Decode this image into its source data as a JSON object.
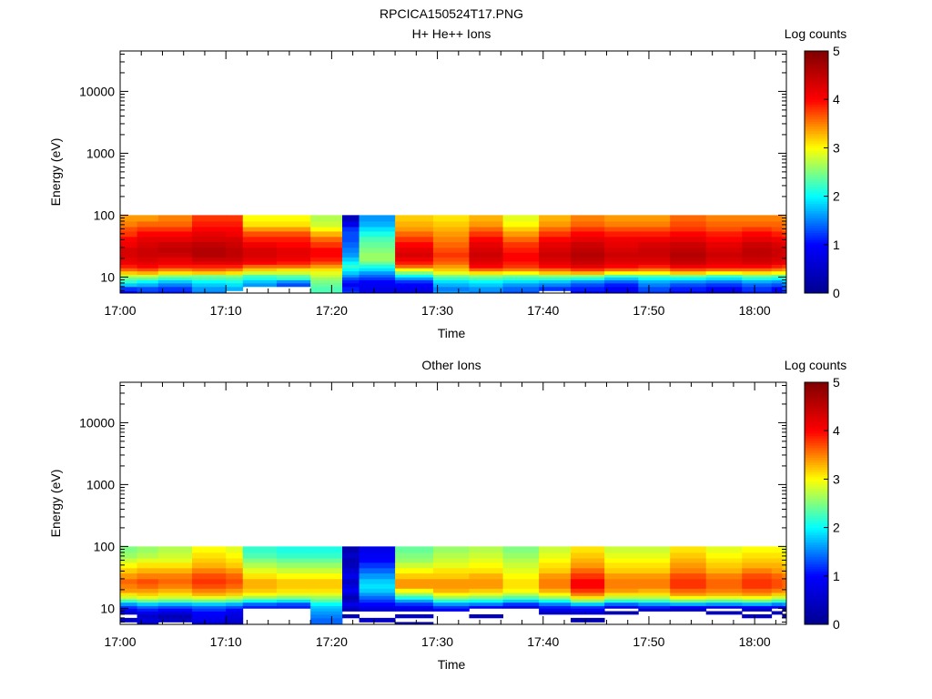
{
  "figure": {
    "title": "RPCICA150524T17.PNG"
  },
  "colormap": [
    "#00008f",
    "#0000ff",
    "#00ffff",
    "#ffff00",
    "#ff0000",
    "#800000"
  ],
  "chart_data": [
    {
      "type": "heatmap",
      "title": "H+ He++ Ions",
      "xlabel": "Time",
      "ylabel": "Energy (eV)",
      "ylog": true,
      "xlim_min": [
        0,
        63
      ],
      "ylim": [
        5.5,
        45000
      ],
      "x_ticks_min": [
        0,
        10,
        20,
        30,
        40,
        50,
        60
      ],
      "x_tick_labels": [
        "17:00",
        "17:10",
        "17:20",
        "17:30",
        "17:40",
        "17:50",
        "18:00"
      ],
      "y_ticks": [
        10,
        100,
        1000,
        10000
      ],
      "y_tick_labels": [
        "10",
        "100",
        "1000",
        "10000"
      ],
      "colorbar": {
        "label": "Log counts",
        "range": [
          0,
          5
        ],
        "ticks": [
          0,
          1,
          2,
          3,
          4,
          5
        ],
        "tick_labels": [
          "0",
          "1",
          "2",
          "3",
          "4",
          "5"
        ]
      },
      "data_extent_eV": [
        5.5,
        100
      ],
      "energy_bins_eV": [
        6.0,
        7.0,
        8.0,
        9.0,
        10.0,
        11.0,
        12.5,
        14.0,
        16.0,
        18.0,
        21.0,
        25.0,
        30.0,
        37.0,
        45.0,
        55.0,
        65.0,
        80.0,
        100.0
      ],
      "time_bins_start_min": [
        0,
        1.6,
        3.6,
        6.8,
        10,
        11.6,
        14.8,
        18,
        21,
        22.6,
        26,
        29.6,
        33,
        36.2,
        39.6,
        42.6,
        45.8,
        49,
        52,
        55.4,
        58.8,
        61.6,
        62.6
      ],
      "log_counts": [
        [
          1.0,
          1.2,
          1.8,
          2.2,
          2.4,
          2.8,
          3.2,
          3.6,
          3.9,
          4.1,
          4.2,
          4.3,
          4.3,
          4.1,
          4.0,
          3.8,
          3.7,
          3.5,
          3.4
        ],
        [
          1.2,
          1.3,
          1.7,
          2.0,
          2.4,
          2.8,
          3.3,
          3.7,
          4.0,
          4.2,
          4.3,
          4.4,
          4.4,
          4.3,
          4.2,
          4.0,
          3.8,
          3.6,
          3.4
        ],
        [
          1.1,
          1.2,
          1.5,
          1.8,
          2.2,
          2.6,
          3.1,
          3.5,
          3.9,
          4.1,
          4.2,
          4.4,
          4.5,
          4.4,
          4.2,
          4.0,
          3.8,
          3.6,
          3.5
        ],
        [
          1.5,
          1.6,
          1.8,
          2.0,
          2.3,
          2.5,
          3.2,
          3.6,
          3.9,
          4.2,
          4.4,
          4.6,
          4.6,
          4.5,
          4.3,
          4.2,
          4.0,
          3.9,
          3.8
        ],
        [
          null,
          1.7,
          1.9,
          2.1,
          2.3,
          2.6,
          3.1,
          3.5,
          3.9,
          4.2,
          4.4,
          4.5,
          4.5,
          4.4,
          4.3,
          4.1,
          4.0,
          3.9,
          3.8
        ],
        [
          null,
          null,
          1.6,
          1.8,
          2.1,
          2.3,
          2.8,
          3.2,
          3.6,
          4.0,
          4.2,
          4.3,
          4.3,
          4.1,
          3.9,
          3.7,
          3.4,
          3.1,
          3.0
        ],
        [
          null,
          null,
          1.3,
          1.6,
          2.2,
          2.4,
          2.8,
          3.1,
          3.6,
          3.9,
          4.1,
          4.2,
          4.2,
          4.0,
          3.9,
          3.7,
          3.4,
          3.1,
          3.0
        ],
        [
          2.3,
          2.3,
          2.4,
          2.5,
          2.6,
          2.8,
          2.9,
          3.1,
          3.4,
          3.7,
          3.9,
          4.0,
          4.0,
          3.8,
          3.6,
          3.3,
          3.0,
          2.8,
          2.7
        ],
        [
          1.2,
          1.1,
          0.9,
          1.1,
          1.3,
          1.6,
          1.8,
          2.0,
          2.2,
          2.0,
          1.8,
          1.6,
          1.5,
          1.4,
          1.3,
          1.3,
          1.2,
          0.8,
          0.4
        ],
        [
          0.9,
          0.8,
          0.9,
          1.0,
          1.2,
          1.4,
          1.6,
          1.9,
          2.1,
          2.4,
          2.6,
          2.6,
          2.5,
          2.4,
          2.3,
          2.1,
          1.9,
          1.7,
          1.6
        ],
        [
          0.8,
          0.8,
          1.0,
          1.2,
          1.6,
          2.0,
          2.5,
          3.0,
          3.6,
          3.9,
          4.1,
          4.3,
          4.2,
          4.0,
          3.8,
          3.6,
          3.4,
          3.3,
          3.2
        ],
        [
          1.6,
          1.5,
          1.7,
          1.9,
          2.2,
          2.5,
          2.9,
          3.2,
          3.4,
          3.6,
          3.7,
          3.8,
          3.7,
          3.6,
          3.5,
          3.4,
          3.3,
          3.2,
          3.1
        ],
        [
          1.5,
          1.6,
          1.8,
          2.0,
          2.3,
          2.6,
          3.1,
          3.6,
          4.0,
          4.2,
          4.3,
          4.4,
          4.3,
          4.2,
          4.0,
          3.8,
          3.6,
          3.4,
          3.3
        ],
        [
          1.3,
          1.4,
          1.6,
          1.9,
          2.2,
          2.5,
          3.0,
          3.5,
          3.8,
          3.9,
          4.0,
          4.0,
          3.9,
          3.8,
          3.6,
          3.4,
          3.2,
          3.0,
          2.9
        ],
        [
          null,
          1.2,
          1.5,
          1.8,
          2.2,
          2.6,
          3.2,
          3.6,
          4.0,
          4.2,
          4.3,
          4.4,
          4.3,
          4.2,
          4.0,
          3.8,
          3.6,
          3.4,
          3.3
        ],
        [
          1.0,
          1.1,
          1.3,
          1.6,
          2.1,
          2.6,
          3.3,
          3.8,
          4.2,
          4.4,
          4.5,
          4.6,
          4.5,
          4.4,
          4.2,
          4.0,
          3.8,
          3.6,
          3.5
        ],
        [
          0.8,
          0.9,
          1.1,
          1.4,
          1.8,
          2.3,
          3.0,
          3.6,
          4.0,
          4.2,
          4.3,
          4.4,
          4.3,
          4.2,
          4.1,
          3.9,
          3.7,
          3.5,
          3.4
        ],
        [
          1.2,
          1.3,
          1.5,
          1.7,
          2.0,
          2.4,
          3.0,
          3.5,
          3.9,
          4.2,
          4.3,
          4.4,
          4.4,
          4.3,
          4.1,
          3.9,
          3.7,
          3.5,
          3.4
        ],
        [
          1.0,
          1.1,
          1.3,
          1.6,
          2.0,
          2.5,
          3.2,
          3.7,
          4.1,
          4.4,
          4.5,
          4.6,
          4.5,
          4.4,
          4.2,
          4.0,
          3.8,
          3.7,
          3.6
        ],
        [
          0.7,
          0.9,
          1.2,
          1.5,
          1.9,
          2.3,
          3.0,
          3.6,
          4.0,
          4.2,
          4.3,
          4.4,
          4.3,
          4.2,
          4.0,
          3.9,
          3.7,
          3.6,
          3.5
        ],
        [
          1.1,
          1.2,
          1.4,
          1.7,
          2.1,
          2.5,
          3.1,
          3.6,
          4.0,
          4.3,
          4.4,
          4.5,
          4.5,
          4.4,
          4.2,
          4.0,
          3.8,
          3.6,
          3.5
        ],
        [
          0.9,
          1.0,
          1.3,
          1.6,
          2.0,
          2.4,
          3.0,
          3.5,
          3.9,
          4.2,
          4.3,
          4.4,
          4.4,
          4.3,
          4.1,
          3.9,
          3.7,
          3.6,
          3.5
        ],
        [
          1.2,
          1.3,
          1.5,
          1.8,
          2.1,
          2.4,
          3.0,
          3.4,
          3.8,
          4.1,
          4.2,
          4.3,
          4.3,
          4.2,
          4.0,
          3.8,
          3.6,
          3.5,
          3.4
        ]
      ]
    },
    {
      "type": "heatmap",
      "title": "Other Ions",
      "xlabel": "Time",
      "ylabel": "Energy (eV)",
      "ylog": true,
      "xlim_min": [
        0,
        63
      ],
      "ylim": [
        5.5,
        45000
      ],
      "x_ticks_min": [
        0,
        10,
        20,
        30,
        40,
        50,
        60
      ],
      "x_tick_labels": [
        "17:00",
        "17:10",
        "17:20",
        "17:30",
        "17:40",
        "17:50",
        "18:00"
      ],
      "y_ticks": [
        10,
        100,
        1000,
        10000
      ],
      "y_tick_labels": [
        "10",
        "100",
        "1000",
        "10000"
      ],
      "colorbar": {
        "label": "Log counts",
        "range": [
          0,
          5
        ],
        "ticks": [
          0,
          1,
          2,
          3,
          4,
          5
        ],
        "tick_labels": [
          "0",
          "1",
          "2",
          "3",
          "4",
          "5"
        ]
      },
      "data_extent_eV": [
        5.5,
        100
      ],
      "energy_bins_eV": [
        6.0,
        7.0,
        8.0,
        9.0,
        10.0,
        11.0,
        12.5,
        14.0,
        16.0,
        18.0,
        21.0,
        25.0,
        30.0,
        37.0,
        45.0,
        55.0,
        65.0,
        80.0,
        100.0
      ],
      "time_bins_start_min": [
        0,
        1.6,
        3.6,
        6.8,
        10,
        11.6,
        14.8,
        18,
        21,
        22.6,
        26,
        29.6,
        33,
        36.2,
        39.6,
        42.6,
        45.8,
        49,
        52,
        55.4,
        58.8,
        61.6,
        62.6
      ],
      "log_counts": [
        [
          null,
          0.5,
          null,
          0.6,
          0.9,
          1.2,
          1.6,
          2.2,
          2.8,
          3.1,
          3.4,
          3.5,
          3.6,
          3.4,
          3.2,
          3.0,
          2.8,
          2.6,
          2.5
        ],
        [
          0.4,
          0.7,
          0.5,
          0.8,
          1.1,
          1.4,
          1.8,
          2.4,
          2.9,
          3.2,
          3.4,
          3.6,
          3.7,
          3.5,
          3.3,
          3.1,
          2.9,
          2.7,
          2.6
        ],
        [
          null,
          0.5,
          0.3,
          0.7,
          1.0,
          1.3,
          1.7,
          2.3,
          2.8,
          3.1,
          3.3,
          3.5,
          3.6,
          3.5,
          3.3,
          3.1,
          2.9,
          2.8,
          2.7
        ],
        [
          0.6,
          0.8,
          0.9,
          1.0,
          1.2,
          1.4,
          1.8,
          2.4,
          2.9,
          3.3,
          3.5,
          3.7,
          3.8,
          3.7,
          3.5,
          3.3,
          3.2,
          3.1,
          3.0
        ],
        [
          0.5,
          0.6,
          0.7,
          0.8,
          1.0,
          1.3,
          1.7,
          2.3,
          2.8,
          3.2,
          3.4,
          3.6,
          3.7,
          3.6,
          3.4,
          3.2,
          3.1,
          3.0,
          2.9
        ],
        [
          null,
          null,
          null,
          null,
          null,
          1.1,
          1.4,
          2.0,
          2.6,
          3.0,
          3.2,
          3.3,
          3.3,
          3.1,
          2.9,
          2.7,
          2.5,
          2.3,
          2.2
        ],
        [
          null,
          null,
          null,
          null,
          null,
          1.1,
          1.3,
          1.9,
          2.5,
          2.9,
          3.1,
          3.2,
          3.2,
          3.0,
          2.8,
          2.6,
          2.4,
          2.2,
          2.1
        ],
        [
          1.4,
          1.4,
          1.5,
          1.6,
          1.7,
          1.8,
          2.0,
          2.3,
          2.6,
          2.9,
          3.1,
          3.2,
          3.2,
          3.0,
          2.8,
          2.6,
          2.4,
          2.2,
          2.1
        ],
        [
          null,
          null,
          0.4,
          null,
          0.3,
          0.6,
          0.8,
          0.5,
          0.3,
          0.6,
          0.9,
          0.7,
          0.5,
          0.8,
          0.6,
          0.4,
          0.3,
          0.5,
          0.3
        ],
        [
          null,
          0.5,
          null,
          null,
          0.6,
          0.8,
          1.0,
          1.2,
          1.4,
          1.6,
          1.8,
          1.9,
          1.8,
          1.6,
          1.4,
          1.2,
          1.0,
          0.9,
          0.8
        ],
        [
          0.3,
          null,
          0.5,
          null,
          0.7,
          0.9,
          1.2,
          1.6,
          2.1,
          2.6,
          3.0,
          3.4,
          3.4,
          3.2,
          3.0,
          2.8,
          2.6,
          2.5,
          2.4
        ],
        [
          null,
          null,
          null,
          null,
          0.9,
          1.2,
          1.6,
          2.1,
          2.6,
          3.0,
          3.3,
          3.4,
          3.4,
          3.2,
          3.1,
          2.9,
          2.8,
          2.7,
          2.6
        ],
        [
          null,
          null,
          0.4,
          null,
          null,
          1.0,
          1.5,
          2.0,
          2.5,
          2.9,
          3.2,
          3.4,
          3.4,
          3.3,
          3.1,
          3.0,
          2.9,
          2.8,
          2.7
        ],
        [
          null,
          null,
          null,
          null,
          null,
          0.8,
          1.2,
          1.8,
          2.3,
          2.7,
          3.0,
          3.1,
          3.1,
          3.0,
          2.9,
          2.8,
          2.7,
          2.6,
          2.5
        ],
        [
          null,
          null,
          null,
          0.5,
          0.8,
          1.1,
          1.5,
          2.0,
          2.6,
          3.0,
          3.3,
          3.5,
          3.5,
          3.4,
          3.2,
          3.1,
          3.0,
          2.9,
          2.8
        ],
        [
          null,
          0.3,
          null,
          0.6,
          0.9,
          1.2,
          1.8,
          2.5,
          3.1,
          3.5,
          3.8,
          4.0,
          4.0,
          3.8,
          3.6,
          3.4,
          3.3,
          3.2,
          3.1
        ],
        [
          null,
          null,
          null,
          0.3,
          null,
          0.9,
          1.4,
          2.1,
          2.7,
          3.1,
          3.4,
          3.5,
          3.5,
          3.4,
          3.2,
          3.1,
          3.0,
          2.9,
          2.8
        ],
        [
          null,
          null,
          null,
          null,
          0.5,
          1.1,
          1.6,
          2.2,
          2.7,
          3.1,
          3.3,
          3.5,
          3.5,
          3.4,
          3.2,
          3.1,
          3.0,
          2.9,
          2.8
        ],
        [
          null,
          null,
          null,
          null,
          0.4,
          1.0,
          1.7,
          2.4,
          3.0,
          3.4,
          3.6,
          3.8,
          3.8,
          3.7,
          3.5,
          3.4,
          3.3,
          3.2,
          3.1
        ],
        [
          null,
          null,
          null,
          0.4,
          null,
          0.9,
          1.6,
          2.3,
          2.9,
          3.3,
          3.5,
          3.6,
          3.6,
          3.5,
          3.3,
          3.2,
          3.1,
          3.0,
          2.9
        ],
        [
          null,
          null,
          0.5,
          null,
          0.4,
          1.0,
          1.7,
          2.4,
          3.0,
          3.4,
          3.6,
          3.8,
          3.8,
          3.7,
          3.5,
          3.3,
          3.2,
          3.1,
          3.0
        ],
        [
          null,
          null,
          null,
          0.4,
          null,
          0.9,
          1.5,
          2.2,
          2.8,
          3.2,
          3.5,
          3.7,
          3.7,
          3.6,
          3.4,
          3.3,
          3.2,
          3.1,
          3.0
        ],
        [
          null,
          null,
          0.3,
          null,
          0.5,
          1.0,
          1.6,
          2.2,
          2.8,
          3.2,
          3.4,
          3.6,
          3.6,
          3.5,
          3.3,
          3.2,
          3.1,
          3.0,
          2.9
        ]
      ]
    }
  ]
}
